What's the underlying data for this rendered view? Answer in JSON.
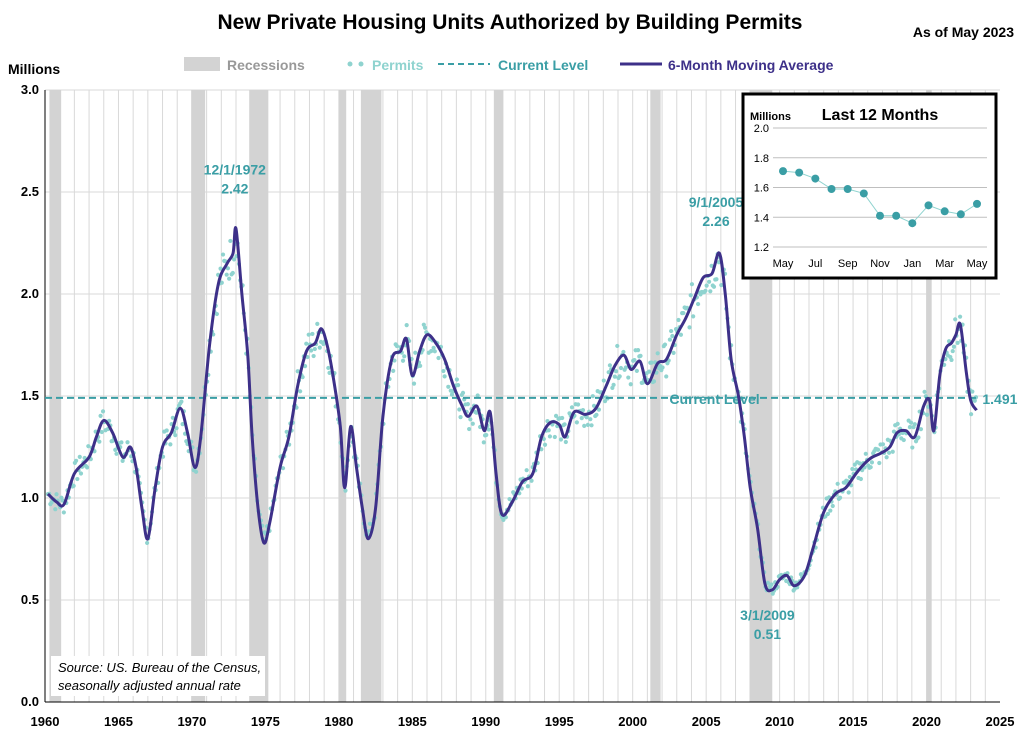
{
  "chart_data": [
    {
      "type": "line",
      "title": "New Private Housing Units Authorized by Building Permits",
      "subtitle": "As of May 2023",
      "ylabel": "Millions",
      "ylim": [
        0,
        3
      ],
      "xlim": [
        1960,
        2025
      ],
      "x_ticks": [
        1960,
        1965,
        1970,
        1975,
        1980,
        1985,
        1990,
        1995,
        2000,
        2005,
        2010,
        2015,
        2020,
        2025
      ],
      "y_ticks": [
        0.0,
        0.5,
        1.0,
        1.5,
        2.0,
        2.5,
        3.0
      ],
      "grid": true,
      "legend": [
        "Recessions",
        "Permits",
        "Current Level",
        "6-Month Moving Average"
      ],
      "legend_position": "top",
      "recessions": [
        [
          1960.3,
          1961.1
        ],
        [
          1969.95,
          1970.9
        ],
        [
          1973.9,
          1975.2
        ],
        [
          1980.0,
          1980.5
        ],
        [
          1981.5,
          1982.9
        ],
        [
          1990.55,
          1991.2
        ],
        [
          2001.2,
          2001.9
        ],
        [
          2007.95,
          2009.5
        ],
        [
          2020.0,
          2020.35
        ]
      ],
      "current_level": 1.491,
      "current_level_label": "Current Level",
      "current_level_value_label": "1.491",
      "annotations": [
        {
          "date": "12/1/1972",
          "value": "2.42",
          "x": 1972.92,
          "y": 2.42
        },
        {
          "date": "9/1/2005",
          "value": "2.26",
          "x": 2005.67,
          "y": 2.26
        },
        {
          "date": "3/1/2009",
          "value": "0.51",
          "x": 2009.17,
          "y": 0.51
        }
      ],
      "moving_average": [
        [
          1960.2,
          1.02
        ],
        [
          1960.8,
          0.98
        ],
        [
          1961.3,
          0.97
        ],
        [
          1962.0,
          1.12
        ],
        [
          1963.0,
          1.2
        ],
        [
          1963.5,
          1.3
        ],
        [
          1964.0,
          1.38
        ],
        [
          1964.6,
          1.32
        ],
        [
          1965.3,
          1.2
        ],
        [
          1965.8,
          1.25
        ],
        [
          1966.2,
          1.15
        ],
        [
          1966.6,
          0.95
        ],
        [
          1967.0,
          0.8
        ],
        [
          1967.5,
          1.05
        ],
        [
          1968.0,
          1.25
        ],
        [
          1968.6,
          1.32
        ],
        [
          1969.2,
          1.44
        ],
        [
          1969.7,
          1.32
        ],
        [
          1970.2,
          1.15
        ],
        [
          1970.6,
          1.3
        ],
        [
          1971.2,
          1.75
        ],
        [
          1971.8,
          2.05
        ],
        [
          1972.4,
          2.15
        ],
        [
          1972.8,
          2.2
        ],
        [
          1973.0,
          2.32
        ],
        [
          1973.4,
          2.0
        ],
        [
          1973.8,
          1.7
        ],
        [
          1974.1,
          1.3
        ],
        [
          1974.5,
          0.95
        ],
        [
          1974.9,
          0.78
        ],
        [
          1975.3,
          0.88
        ],
        [
          1976.0,
          1.15
        ],
        [
          1976.6,
          1.3
        ],
        [
          1977.2,
          1.55
        ],
        [
          1977.8,
          1.72
        ],
        [
          1978.4,
          1.76
        ],
        [
          1978.8,
          1.83
        ],
        [
          1979.2,
          1.75
        ],
        [
          1979.6,
          1.6
        ],
        [
          1980.1,
          1.35
        ],
        [
          1980.4,
          1.05
        ],
        [
          1980.8,
          1.35
        ],
        [
          1981.2,
          1.15
        ],
        [
          1981.6,
          0.95
        ],
        [
          1982.0,
          0.8
        ],
        [
          1982.5,
          0.95
        ],
        [
          1983.0,
          1.4
        ],
        [
          1983.6,
          1.68
        ],
        [
          1984.2,
          1.72
        ],
        [
          1984.6,
          1.78
        ],
        [
          1985.0,
          1.6
        ],
        [
          1985.5,
          1.72
        ],
        [
          1986.0,
          1.8
        ],
        [
          1986.6,
          1.76
        ],
        [
          1987.2,
          1.68
        ],
        [
          1987.8,
          1.55
        ],
        [
          1988.4,
          1.45
        ],
        [
          1988.8,
          1.4
        ],
        [
          1989.4,
          1.45
        ],
        [
          1989.9,
          1.33
        ],
        [
          1990.3,
          1.42
        ],
        [
          1990.7,
          1.12
        ],
        [
          1991.1,
          0.92
        ],
        [
          1991.8,
          0.98
        ],
        [
          1992.5,
          1.08
        ],
        [
          1993.2,
          1.12
        ],
        [
          1993.8,
          1.3
        ],
        [
          1994.4,
          1.37
        ],
        [
          1995.0,
          1.36
        ],
        [
          1995.4,
          1.3
        ],
        [
          1996.0,
          1.42
        ],
        [
          1996.8,
          1.41
        ],
        [
          1997.5,
          1.44
        ],
        [
          1998.2,
          1.55
        ],
        [
          1998.8,
          1.65
        ],
        [
          1999.4,
          1.7
        ],
        [
          1999.9,
          1.63
        ],
        [
          2000.5,
          1.67
        ],
        [
          2001.0,
          1.56
        ],
        [
          2001.7,
          1.66
        ],
        [
          2002.3,
          1.68
        ],
        [
          2003.0,
          1.8
        ],
        [
          2003.6,
          1.88
        ],
        [
          2004.2,
          1.98
        ],
        [
          2004.8,
          2.08
        ],
        [
          2005.4,
          2.1
        ],
        [
          2005.9,
          2.2
        ],
        [
          2006.3,
          2.0
        ],
        [
          2006.7,
          1.68
        ],
        [
          2007.2,
          1.5
        ],
        [
          2007.6,
          1.3
        ],
        [
          2008.0,
          1.05
        ],
        [
          2008.5,
          0.85
        ],
        [
          2009.0,
          0.58
        ],
        [
          2009.5,
          0.55
        ],
        [
          2010.0,
          0.6
        ],
        [
          2010.5,
          0.62
        ],
        [
          2011.0,
          0.57
        ],
        [
          2011.7,
          0.62
        ],
        [
          2012.3,
          0.76
        ],
        [
          2013.0,
          0.93
        ],
        [
          2013.8,
          1.02
        ],
        [
          2014.5,
          1.05
        ],
        [
          2015.2,
          1.12
        ],
        [
          2015.8,
          1.17
        ],
        [
          2016.3,
          1.2
        ],
        [
          2016.9,
          1.22
        ],
        [
          2017.5,
          1.25
        ],
        [
          2018.0,
          1.32
        ],
        [
          2018.6,
          1.33
        ],
        [
          2019.2,
          1.3
        ],
        [
          2019.8,
          1.45
        ],
        [
          2020.2,
          1.48
        ],
        [
          2020.5,
          1.33
        ],
        [
          2020.9,
          1.6
        ],
        [
          2021.3,
          1.73
        ],
        [
          2021.7,
          1.76
        ],
        [
          2022.0,
          1.8
        ],
        [
          2022.3,
          1.85
        ],
        [
          2022.7,
          1.62
        ],
        [
          2023.0,
          1.48
        ],
        [
          2023.4,
          1.43
        ]
      ]
    },
    {
      "type": "line",
      "title": "Last 12 Months",
      "ylabel": "Millions",
      "ylim": [
        1.2,
        2.0
      ],
      "y_ticks": [
        "1.2",
        "1.4",
        "1.6",
        "1.8",
        "2.0"
      ],
      "x_tick_labels": [
        "May",
        "Jul",
        "Sep",
        "Nov",
        "Jan",
        "Mar",
        "May"
      ],
      "values": [
        1.71,
        1.7,
        1.66,
        1.59,
        1.59,
        1.56,
        1.41,
        1.41,
        1.36,
        1.48,
        1.44,
        1.42,
        1.49
      ]
    }
  ],
  "source": {
    "line1": "Source: US. Bureau of the Census,",
    "line2": "seasonally adjusted annual rate"
  },
  "colors": {
    "moving_average": "#3d3089",
    "permits": "#8fd3cf",
    "current_level": "#3a9ea5",
    "recession": "#d3d3d3",
    "grid": "#d9d9d9"
  }
}
